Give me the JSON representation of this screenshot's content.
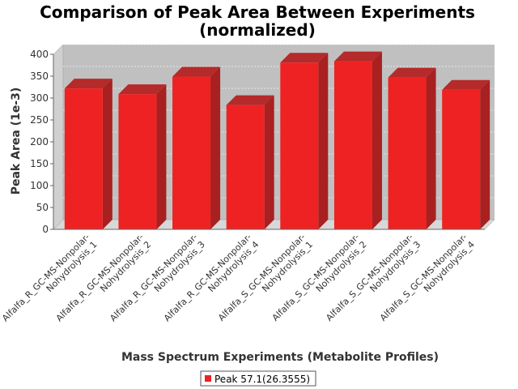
{
  "chart_data": {
    "type": "bar",
    "title_line1": "Comparison of Peak Area Between Experiments",
    "title_line2": "(normalized)",
    "xlabel": "Mass Spectrum Experiments (Metabolite Profiles)",
    "ylabel": "Peak Area (1e-3)",
    "ylim": [
      0,
      400
    ],
    "yticks": [
      "0",
      "50",
      "100",
      "150",
      "200",
      "250",
      "300",
      "350",
      "400"
    ],
    "grid": true,
    "legend_position": "bottom",
    "categories": [
      [
        "Alfalfa_R_GC-MS-Nonpolar-",
        "Nohydrolysis_1"
      ],
      [
        "Alfalfa_R_GC-MS-Nonpolar-",
        "Nohydrolysis_2"
      ],
      [
        "Alfalfa_R_GC-MS-Nonpolar-",
        "Nohydrolysis_3"
      ],
      [
        "Alfalfa_R_GC-MS-Nonpolar-",
        "Nohydrolysis_4"
      ],
      [
        "Alfalfa_S_GC-MS-Nonpolar-",
        "Nohydrolysis_1"
      ],
      [
        "Alfalfa_S_GC-MS-Nonpolar-",
        "Nohydrolysis_2"
      ],
      [
        "Alfalfa_S_GC-MS-Nonpolar-",
        "Nohydrolysis_3"
      ],
      [
        "Alfalfa_S_GC-MS-Nonpolar-",
        "Nohydrolysis_4"
      ]
    ],
    "series": [
      {
        "name": "Peak 57.1(26.3555)",
        "color": "#ee2222",
        "values": [
          322,
          309,
          349,
          284,
          381,
          384,
          347,
          319
        ]
      }
    ]
  }
}
